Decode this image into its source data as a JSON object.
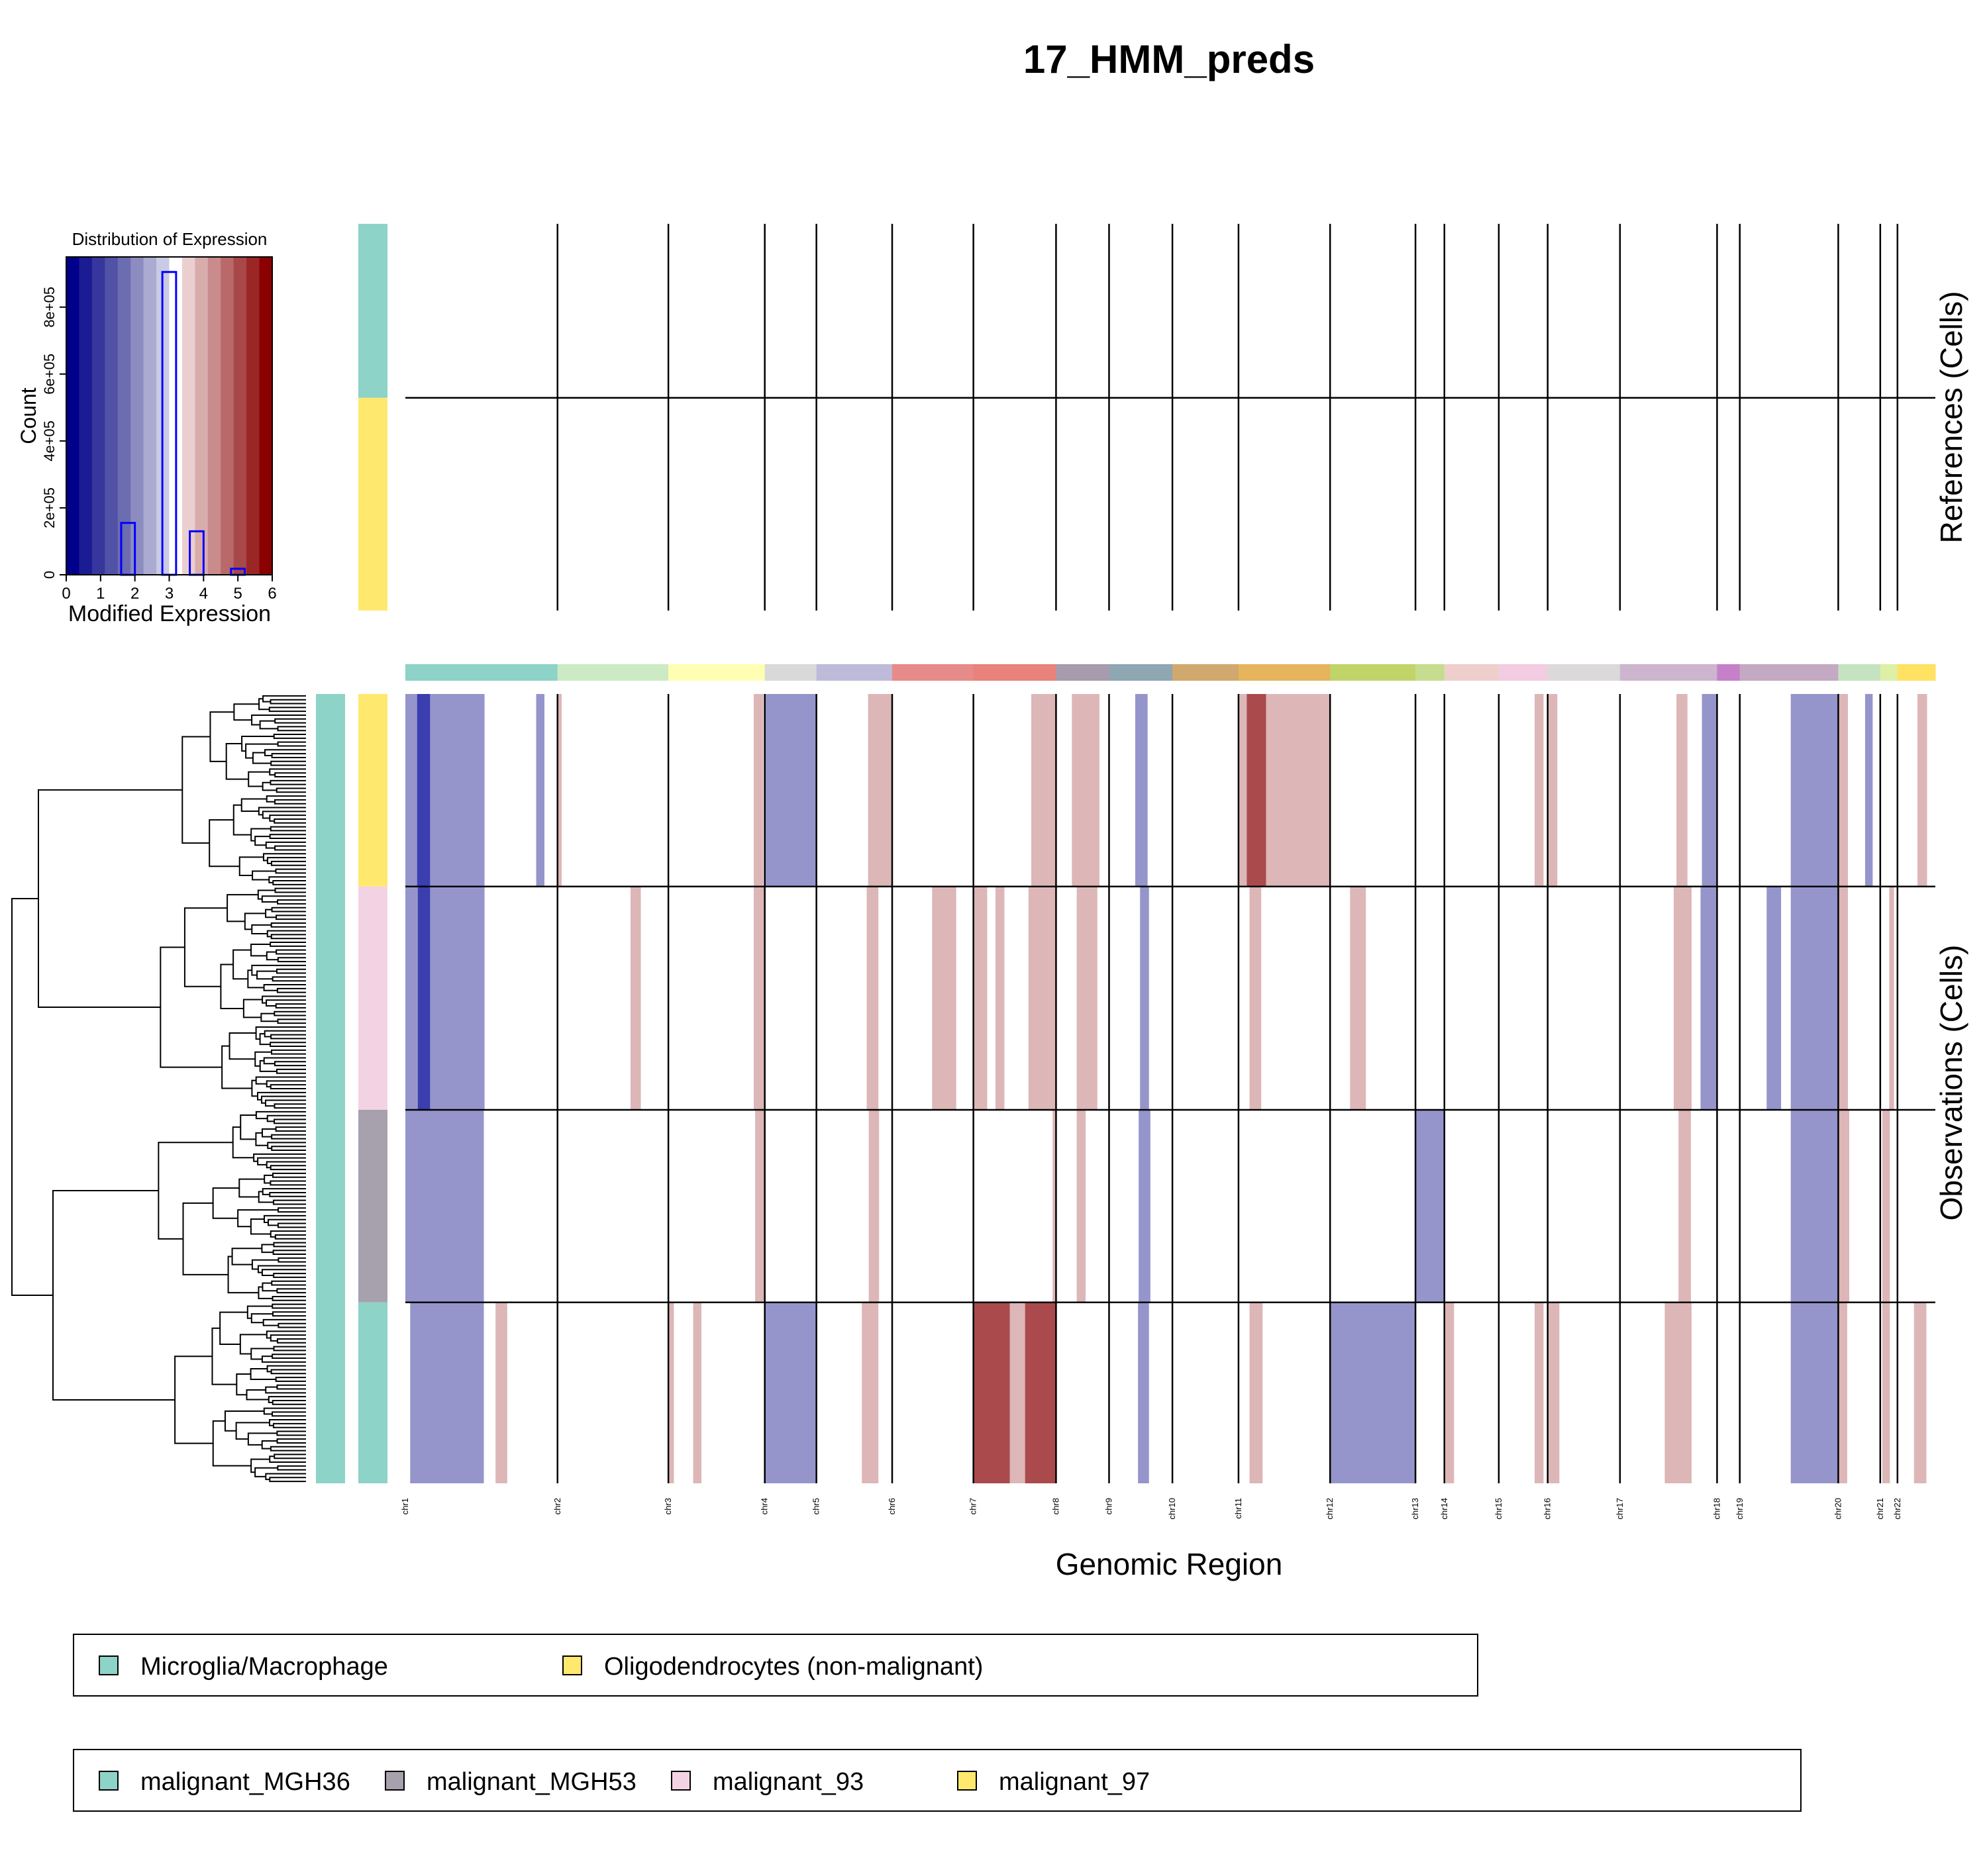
{
  "chart_data": {
    "type": "heatmap",
    "title": "17_HMM_preds",
    "xlabel": "Genomic Region",
    "references_label": "References (Cells)",
    "observations_label": "Observations (Cells)",
    "chromosomes": [
      {
        "name": "chr1",
        "start": 0,
        "end": 221,
        "color": "#8DD3C7"
      },
      {
        "name": "chr2",
        "start": 221,
        "end": 382,
        "color": "#CCEBC5"
      },
      {
        "name": "chr3",
        "start": 382,
        "end": 522,
        "color": "#FFFFB3"
      },
      {
        "name": "chr4",
        "start": 522,
        "end": 597,
        "color": "#D9D9D9"
      },
      {
        "name": "chr5",
        "start": 597,
        "end": 707,
        "color": "#BEBADA"
      },
      {
        "name": "chr6",
        "start": 707,
        "end": 825,
        "color": "#E78A8A"
      },
      {
        "name": "chr7",
        "start": 825,
        "end": 945,
        "color": "#E8827A"
      },
      {
        "name": "chr8",
        "start": 945,
        "end": 1022,
        "color": "#A89BAD"
      },
      {
        "name": "chr9",
        "start": 1022,
        "end": 1114,
        "color": "#8FA6B3"
      },
      {
        "name": "chr10",
        "start": 1114,
        "end": 1210,
        "color": "#D1A86E"
      },
      {
        "name": "chr11",
        "start": 1210,
        "end": 1343,
        "color": "#E5B45D"
      },
      {
        "name": "chr12",
        "start": 1343,
        "end": 1467,
        "color": "#C1D46A"
      },
      {
        "name": "chr13",
        "start": 1467,
        "end": 1509,
        "color": "#C6DD8F"
      },
      {
        "name": "chr14",
        "start": 1509,
        "end": 1588,
        "color": "#EECFCC"
      },
      {
        "name": "chr15",
        "start": 1588,
        "end": 1659,
        "color": "#F2CCE0"
      },
      {
        "name": "chr16",
        "start": 1659,
        "end": 1764,
        "color": "#DBD9D9"
      },
      {
        "name": "chr17",
        "start": 1764,
        "end": 1905,
        "color": "#CDB5CE"
      },
      {
        "name": "chr18",
        "start": 1905,
        "end": 1938,
        "color": "#C680C9"
      },
      {
        "name": "chr19",
        "start": 1938,
        "end": 2081,
        "color": "#C4A9C2"
      },
      {
        "name": "chr20",
        "start": 2081,
        "end": 2142,
        "color": "#C5E3C0"
      },
      {
        "name": "chr21",
        "start": 2142,
        "end": 2167,
        "color": "#DDF0A6"
      },
      {
        "name": "chr22",
        "start": 2167,
        "end": 2222,
        "color": "#FFE261"
      }
    ],
    "reference_groups": [
      {
        "name": "Microglia/Macrophage",
        "color": "#8DD3C7",
        "cells": 45
      },
      {
        "name": "Oligodendrocytes (non-malignant)",
        "color": "#FFE86E",
        "cells": 55
      }
    ],
    "observation_groups": [
      {
        "name": "malignant_97",
        "color": "#FFE86E",
        "cells": 50
      },
      {
        "name": "malignant_93",
        "color": "#F3D3E3",
        "cells": 58
      },
      {
        "name": "malignant_MGH53",
        "color": "#A7A0AD",
        "cells": 50
      },
      {
        "name": "malignant_MGH36",
        "color": "#8DD3C7",
        "cells": 47
      }
    ],
    "cnv_state_colors": {
      "0.5": "#3A3EAE",
      "1": "#9595CC",
      "1.5": "#DDB6B7",
      "2": "#AA4A4D"
    },
    "cnv_segments": [
      {
        "group": "malignant_97",
        "start": 0,
        "end": 17,
        "state": 1
      },
      {
        "group": "malignant_97",
        "start": 17,
        "end": 36,
        "state": 0.5
      },
      {
        "group": "malignant_97",
        "start": 36,
        "end": 115,
        "state": 1
      },
      {
        "group": "malignant_97",
        "start": 190,
        "end": 202,
        "state": 1
      },
      {
        "group": "malignant_97",
        "start": 221,
        "end": 227,
        "state": 1.5
      },
      {
        "group": "malignant_97",
        "start": 506,
        "end": 520,
        "state": 1.5
      },
      {
        "group": "malignant_97",
        "start": 522,
        "end": 597,
        "state": 1
      },
      {
        "group": "malignant_97",
        "start": 672,
        "end": 707,
        "state": 1.5
      },
      {
        "group": "malignant_97",
        "start": 909,
        "end": 945,
        "state": 1.5
      },
      {
        "group": "malignant_97",
        "start": 968,
        "end": 1008,
        "state": 1.5
      },
      {
        "group": "malignant_97",
        "start": 1060,
        "end": 1078,
        "state": 1
      },
      {
        "group": "malignant_97",
        "start": 1210,
        "end": 1222,
        "state": 1.5
      },
      {
        "group": "malignant_97",
        "start": 1222,
        "end": 1250,
        "state": 2
      },
      {
        "group": "malignant_97",
        "start": 1250,
        "end": 1343,
        "state": 1.5
      },
      {
        "group": "malignant_97",
        "start": 1640,
        "end": 1653,
        "state": 1.5
      },
      {
        "group": "malignant_97",
        "start": 1659,
        "end": 1673,
        "state": 1.5
      },
      {
        "group": "malignant_97",
        "start": 1846,
        "end": 1862,
        "state": 1.5
      },
      {
        "group": "malignant_97",
        "start": 1883,
        "end": 1905,
        "state": 1
      },
      {
        "group": "malignant_97",
        "start": 2012,
        "end": 2081,
        "state": 1
      },
      {
        "group": "malignant_97",
        "start": 2081,
        "end": 2095,
        "state": 1.5
      },
      {
        "group": "malignant_97",
        "start": 2120,
        "end": 2131,
        "state": 1
      },
      {
        "group": "malignant_97",
        "start": 2196,
        "end": 2210,
        "state": 1.5
      },
      {
        "group": "malignant_93",
        "start": 0,
        "end": 18,
        "state": 1
      },
      {
        "group": "malignant_93",
        "start": 18,
        "end": 36,
        "state": 0.5
      },
      {
        "group": "malignant_93",
        "start": 36,
        "end": 115,
        "state": 1
      },
      {
        "group": "malignant_93",
        "start": 327,
        "end": 342,
        "state": 1.5
      },
      {
        "group": "malignant_93",
        "start": 506,
        "end": 522,
        "state": 1.5
      },
      {
        "group": "malignant_93",
        "start": 670,
        "end": 687,
        "state": 1.5
      },
      {
        "group": "malignant_93",
        "start": 765,
        "end": 800,
        "state": 1.5
      },
      {
        "group": "malignant_93",
        "start": 825,
        "end": 845,
        "state": 1.5
      },
      {
        "group": "malignant_93",
        "start": 857,
        "end": 870,
        "state": 1.5
      },
      {
        "group": "malignant_93",
        "start": 905,
        "end": 945,
        "state": 1.5
      },
      {
        "group": "malignant_93",
        "start": 975,
        "end": 1005,
        "state": 1.5
      },
      {
        "group": "malignant_93",
        "start": 1067,
        "end": 1080,
        "state": 1
      },
      {
        "group": "malignant_93",
        "start": 1226,
        "end": 1243,
        "state": 1.5
      },
      {
        "group": "malignant_93",
        "start": 1372,
        "end": 1395,
        "state": 1.5
      },
      {
        "group": "malignant_93",
        "start": 1842,
        "end": 1868,
        "state": 1.5
      },
      {
        "group": "malignant_93",
        "start": 1881,
        "end": 1905,
        "state": 1
      },
      {
        "group": "malignant_93",
        "start": 1977,
        "end": 1998,
        "state": 1
      },
      {
        "group": "malignant_93",
        "start": 2012,
        "end": 2081,
        "state": 1
      },
      {
        "group": "malignant_93",
        "start": 2081,
        "end": 2095,
        "state": 1.5
      },
      {
        "group": "malignant_93",
        "start": 2155,
        "end": 2162,
        "state": 1.5
      },
      {
        "group": "malignant_MGH53",
        "start": 0,
        "end": 114,
        "state": 1
      },
      {
        "group": "malignant_MGH53",
        "start": 508,
        "end": 522,
        "state": 1.5
      },
      {
        "group": "malignant_MGH53",
        "start": 673,
        "end": 688,
        "state": 1.5
      },
      {
        "group": "malignant_MGH53",
        "start": 940,
        "end": 946,
        "state": 1.5
      },
      {
        "group": "malignant_MGH53",
        "start": 975,
        "end": 988,
        "state": 1.5
      },
      {
        "group": "malignant_MGH53",
        "start": 1065,
        "end": 1082,
        "state": 1
      },
      {
        "group": "malignant_MGH53",
        "start": 1467,
        "end": 1509,
        "state": 1
      },
      {
        "group": "malignant_MGH53",
        "start": 1849,
        "end": 1867,
        "state": 1.5
      },
      {
        "group": "malignant_MGH53",
        "start": 2012,
        "end": 2081,
        "state": 1
      },
      {
        "group": "malignant_MGH53",
        "start": 2081,
        "end": 2097,
        "state": 1.5
      },
      {
        "group": "malignant_MGH53",
        "start": 2145,
        "end": 2156,
        "state": 1.5
      },
      {
        "group": "malignant_MGH36",
        "start": 7,
        "end": 114,
        "state": 1
      },
      {
        "group": "malignant_MGH36",
        "start": 131,
        "end": 148,
        "state": 1.5
      },
      {
        "group": "malignant_MGH36",
        "start": 382,
        "end": 390,
        "state": 1.5
      },
      {
        "group": "malignant_MGH36",
        "start": 418,
        "end": 430,
        "state": 1.5
      },
      {
        "group": "malignant_MGH36",
        "start": 522,
        "end": 597,
        "state": 1
      },
      {
        "group": "malignant_MGH36",
        "start": 663,
        "end": 687,
        "state": 1.5
      },
      {
        "group": "malignant_MGH36",
        "start": 825,
        "end": 878,
        "state": 2
      },
      {
        "group": "malignant_MGH36",
        "start": 878,
        "end": 900,
        "state": 1.5
      },
      {
        "group": "malignant_MGH36",
        "start": 900,
        "end": 945,
        "state": 2
      },
      {
        "group": "malignant_MGH36",
        "start": 1064,
        "end": 1080,
        "state": 1
      },
      {
        "group": "malignant_MGH36",
        "start": 1226,
        "end": 1245,
        "state": 1.5
      },
      {
        "group": "malignant_MGH36",
        "start": 1343,
        "end": 1467,
        "state": 1
      },
      {
        "group": "malignant_MGH36",
        "start": 1509,
        "end": 1523,
        "state": 1.5
      },
      {
        "group": "malignant_MGH36",
        "start": 1640,
        "end": 1653,
        "state": 1.5
      },
      {
        "group": "malignant_MGH36",
        "start": 1659,
        "end": 1676,
        "state": 1.5
      },
      {
        "group": "malignant_MGH36",
        "start": 1829,
        "end": 1868,
        "state": 1.5
      },
      {
        "group": "malignant_MGH36",
        "start": 2012,
        "end": 2081,
        "state": 1
      },
      {
        "group": "malignant_MGH36",
        "start": 2081,
        "end": 2094,
        "state": 1.5
      },
      {
        "group": "malignant_MGH36",
        "start": 2145,
        "end": 2156,
        "state": 1.5
      },
      {
        "group": "malignant_MGH36",
        "start": 2191,
        "end": 2209,
        "state": 1.5
      }
    ],
    "histogram": {
      "title": "Distribution of Expression",
      "xlabel": "Modified Expression",
      "ylabel": "Count",
      "xlim": [
        0,
        6
      ],
      "ylim": [
        0,
        950000
      ],
      "x_ticks": [
        "0",
        "1",
        "2",
        "3",
        "4",
        "5",
        "6"
      ],
      "y_ticks": [
        {
          "value": 0,
          "label": "0"
        },
        {
          "value": 200000,
          "label": "2e+05"
        },
        {
          "value": 400000,
          "label": "4e+05"
        },
        {
          "value": 600000,
          "label": "6e+05"
        },
        {
          "value": 800000,
          "label": "8e+05"
        }
      ],
      "bins": [
        {
          "x0": 1.6,
          "x1": 2.0,
          "count": 155000
        },
        {
          "x0": 2.8,
          "x1": 3.2,
          "count": 905000
        },
        {
          "x0": 3.6,
          "x1": 4.0,
          "count": 130000
        },
        {
          "x0": 4.8,
          "x1": 5.2,
          "count": 18000
        }
      ],
      "colormap": [
        "#00008B",
        "#1B1B93",
        "#36369C",
        "#5151A6",
        "#6C6CB1",
        "#8C8CC1",
        "#ABABD2",
        "#CACAE4",
        "#FFFFFF",
        "#EBCFCF",
        "#D9ACAC",
        "#C98B8B",
        "#B96969",
        "#A94848",
        "#9A2626",
        "#8B0000"
      ]
    },
    "legend_references": [
      {
        "label": "Microglia/Macrophage",
        "color": "#8DD3C7"
      },
      {
        "label": "Oligodendrocytes (non-malignant)",
        "color": "#FFE86E"
      }
    ],
    "legend_observations": [
      {
        "label": "malignant_MGH36",
        "color": "#8DD3C7"
      },
      {
        "label": "malignant_MGH53",
        "color": "#A7A0AD"
      },
      {
        "label": "malignant_93",
        "color": "#F3D3E3"
      },
      {
        "label": "malignant_97",
        "color": "#FFE86E"
      }
    ]
  }
}
